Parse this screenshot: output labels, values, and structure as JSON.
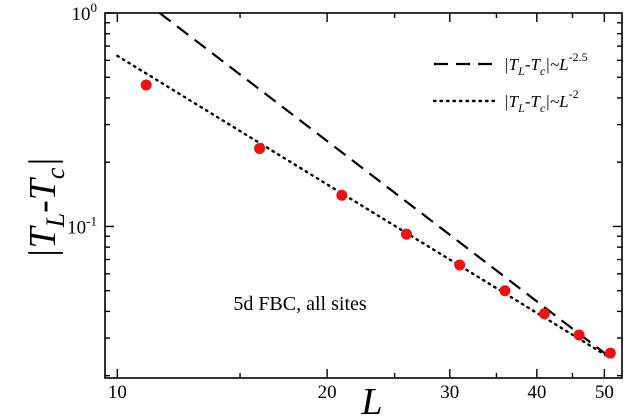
{
  "chart_data": {
    "type": "scatter",
    "title": "",
    "xlabel": "L",
    "ylabel_parts": {
      "open": "|T",
      "sub1": "L",
      "mid": "-T",
      "sub2": "c",
      "close": "|"
    },
    "xscale": "log",
    "yscale": "log",
    "xlim": [
      9.6,
      53
    ],
    "ylim": [
      0.0195,
      1.0
    ],
    "grid": false,
    "legend_position": "top-right",
    "x_ticks": [
      {
        "value": 10,
        "label": "10"
      },
      {
        "value": 20,
        "label": "20"
      },
      {
        "value": 30,
        "label": "30"
      },
      {
        "value": 40,
        "label": "40"
      },
      {
        "value": 50,
        "label": "50"
      }
    ],
    "y_ticks": [
      {
        "value": 0.1,
        "base": "10",
        "exp": "-1"
      },
      {
        "value": 1.0,
        "base": "10",
        "exp": "0"
      }
    ],
    "annotation": "5d FBC, all sites",
    "points": {
      "color": "#ee1111",
      "x": [
        11,
        16,
        21,
        26,
        31,
        36,
        41,
        46,
        51
      ],
      "y": [
        0.46,
        0.232,
        0.14,
        0.092,
        0.066,
        0.05,
        0.039,
        0.031,
        0.0255
      ]
    },
    "series": [
      {
        "style": "dashed",
        "legend": {
          "parts": [
            "|T",
            "L",
            "-T",
            "c",
            "|~L"
          ],
          "exp": "-2.5"
        },
        "x": [
          11.5,
          51
        ],
        "y": [
          1.0,
          0.0243
        ]
      },
      {
        "style": "dotted",
        "legend": {
          "parts": [
            "|T",
            "L",
            "-T",
            "c",
            "|~L"
          ],
          "exp": "-2"
        },
        "x": [
          10,
          51
        ],
        "y": [
          0.63,
          0.0242
        ]
      }
    ]
  }
}
